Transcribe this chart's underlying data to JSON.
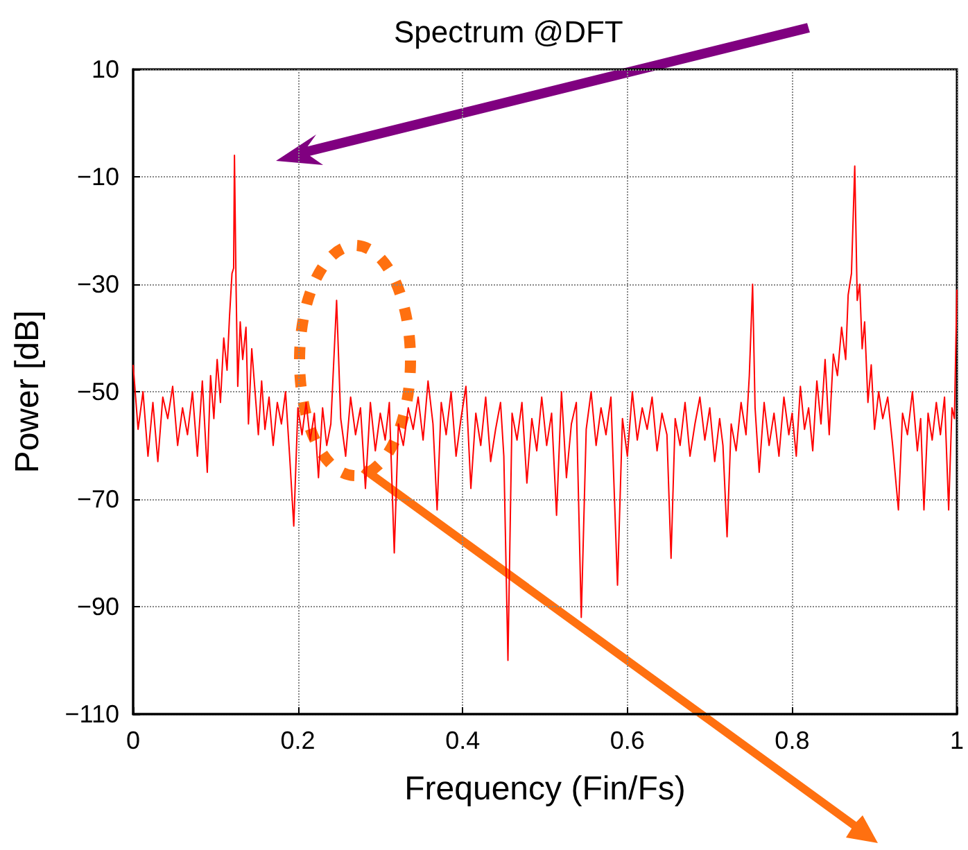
{
  "chart_data": {
    "type": "line",
    "xlabel": "Frequency (Fin/Fs)",
    "ylabel": "Power [dB]",
    "annotations": [
      "Spectrum @DFT"
    ],
    "xlim": [
      0,
      1
    ],
    "xticks": [
      0,
      0.2,
      0.4,
      0.6,
      0.8,
      1
    ],
    "ylim": [
      -110,
      10
    ],
    "yticks": [
      -110,
      -90,
      -70,
      -50,
      -30,
      -10,
      10
    ],
    "grid": true,
    "marker": "none",
    "line_style": "solid",
    "series": [
      {
        "color": "#ff0000",
        "x": [
          0,
          0.006,
          0.012,
          0.018,
          0.024,
          0.03,
          0.036,
          0.042,
          0.048,
          0.054,
          0.06,
          0.066,
          0.072,
          0.078,
          0.084,
          0.09,
          0.094,
          0.098,
          0.102,
          0.106,
          0.11,
          0.114,
          0.117,
          0.12,
          0.122,
          0.123,
          0.125,
          0.127,
          0.13,
          0.133,
          0.137,
          0.14,
          0.144,
          0.148,
          0.152,
          0.156,
          0.16,
          0.165,
          0.17,
          0.175,
          0.18,
          0.185,
          0.19,
          0.195,
          0.2,
          0.205,
          0.21,
          0.215,
          0.22,
          0.225,
          0.23,
          0.235,
          0.24,
          0.247,
          0.252,
          0.258,
          0.264,
          0.27,
          0.276,
          0.282,
          0.288,
          0.294,
          0.3,
          0.306,
          0.311,
          0.317,
          0.322,
          0.328,
          0.334,
          0.34,
          0.346,
          0.352,
          0.358,
          0.364,
          0.369,
          0.374,
          0.38,
          0.386,
          0.392,
          0.398,
          0.404,
          0.41,
          0.416,
          0.422,
          0.428,
          0.434,
          0.44,
          0.446,
          0.45,
          0.455,
          0.46,
          0.466,
          0.472,
          0.478,
          0.484,
          0.49,
          0.496,
          0.502,
          0.508,
          0.514,
          0.52,
          0.526,
          0.532,
          0.538,
          0.544,
          0.55,
          0.556,
          0.562,
          0.568,
          0.574,
          0.58,
          0.588,
          0.594,
          0.6,
          0.606,
          0.612,
          0.618,
          0.624,
          0.63,
          0.636,
          0.642,
          0.648,
          0.653,
          0.658,
          0.664,
          0.67,
          0.676,
          0.682,
          0.688,
          0.694,
          0.7,
          0.706,
          0.712,
          0.716,
          0.721,
          0.726,
          0.732,
          0.738,
          0.744,
          0.748,
          0.752,
          0.755,
          0.76,
          0.766,
          0.772,
          0.778,
          0.784,
          0.79,
          0.796,
          0.8,
          0.805,
          0.81,
          0.815,
          0.82,
          0.825,
          0.83,
          0.835,
          0.84,
          0.845,
          0.85,
          0.855,
          0.86,
          0.865,
          0.868,
          0.872,
          0.876,
          0.879,
          0.882,
          0.885,
          0.888,
          0.892,
          0.896,
          0.9,
          0.905,
          0.91,
          0.916,
          0.922,
          0.929,
          0.934,
          0.94,
          0.946,
          0.952,
          0.956,
          0.96,
          0.965,
          0.97,
          0.975,
          0.98,
          0.985,
          0.99,
          0.994,
          0.997,
          1.0
        ],
        "values": [
          -45,
          -57,
          -50,
          -62,
          -52,
          -63,
          -51,
          -55,
          -49,
          -60,
          -53,
          -58,
          -50,
          -62,
          -48,
          -65,
          -47,
          -55,
          -44,
          -52,
          -40,
          -46,
          -36,
          -28,
          -27,
          -6,
          -31,
          -49,
          -37,
          -44,
          -38,
          -56,
          -42,
          -50,
          -58,
          -48,
          -57,
          -51,
          -60,
          -52,
          -56,
          -50,
          -62,
          -75,
          -53,
          -58,
          -52,
          -59,
          -54,
          -66,
          -53,
          -60,
          -56,
          -33,
          -55,
          -62,
          -51,
          -58,
          -53,
          -68,
          -52,
          -61,
          -54,
          -59,
          -52,
          -80,
          -56,
          -60,
          -53,
          -57,
          -51,
          -59,
          -48,
          -56,
          -72,
          -52,
          -58,
          -50,
          -62,
          -55,
          -49,
          -68,
          -54,
          -60,
          -51,
          -63,
          -57,
          -52,
          -62,
          -100,
          -54,
          -59,
          -52,
          -67,
          -55,
          -61,
          -51,
          -60,
          -54,
          -73,
          -50,
          -66,
          -56,
          -52,
          -92,
          -57,
          -50,
          -60,
          -53,
          -58,
          -51,
          -86,
          -55,
          -62,
          -50,
          -59,
          -53,
          -57,
          -51,
          -61,
          -54,
          -58,
          -81,
          -55,
          -60,
          -52,
          -62,
          -56,
          -51,
          -59,
          -53,
          -63,
          -55,
          -60,
          -77,
          -56,
          -61,
          -52,
          -58,
          -47,
          -30,
          -53,
          -65,
          -52,
          -60,
          -54,
          -62,
          -51,
          -58,
          -54,
          -62,
          -49,
          -57,
          -53,
          -61,
          -48,
          -56,
          -44,
          -58,
          -43,
          -47,
          -38,
          -44,
          -32,
          -28,
          -8,
          -33,
          -30,
          -42,
          -37,
          -52,
          -45,
          -57,
          -50,
          -55,
          -51,
          -60,
          -72,
          -54,
          -58,
          -50,
          -61,
          -55,
          -72,
          -54,
          -59,
          -52,
          -58,
          -51,
          -72,
          -53,
          -55,
          -31
        ]
      }
    ]
  }
}
